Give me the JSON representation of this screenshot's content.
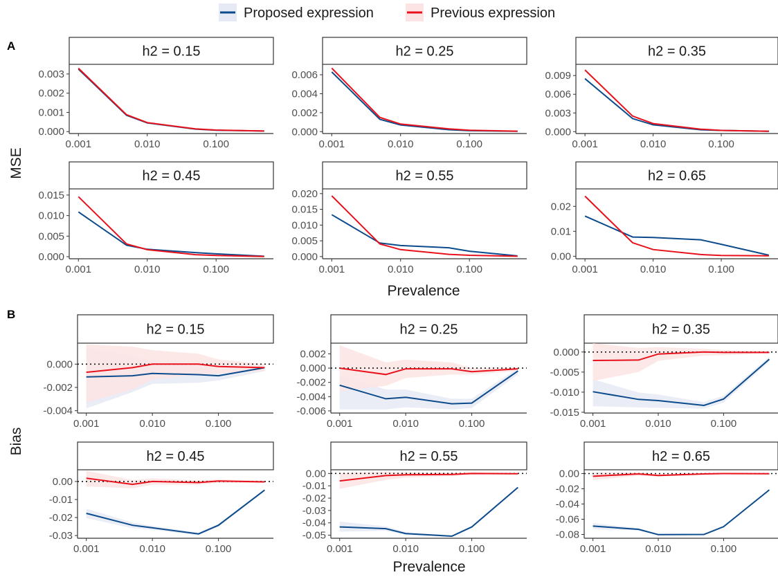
{
  "legend": {
    "items": [
      {
        "label": "Proposed expression",
        "color": "#0b4a8b",
        "fill": "#e6eaf4"
      },
      {
        "label": "Previous expression",
        "color": "#e8111b",
        "fill": "#fde4e4"
      }
    ]
  },
  "sections": [
    {
      "label": "A",
      "ylabel": "MSE",
      "xlabel": "Prevalence"
    },
    {
      "label": "B",
      "ylabel": "Bias",
      "xlabel": "Prevalence"
    }
  ],
  "chart_data": [
    {
      "type": "line",
      "section": "A",
      "title": "h2 = 0.15",
      "xscale": "log",
      "x": [
        0.001,
        0.005,
        0.01,
        0.05,
        0.1,
        0.5
      ],
      "xticks": [
        0.001,
        0.01,
        0.1
      ],
      "xtick_labels": [
        "0.001",
        "0.010",
        "0.100"
      ],
      "ylim": [
        -0.0001,
        0.0035
      ],
      "yticks": [
        0,
        0.001,
        0.002,
        0.003
      ],
      "ytick_labels": [
        "0.000",
        "0.001",
        "0.002",
        "0.003"
      ],
      "series": [
        {
          "name": "Proposed expression",
          "values": [
            0.00325,
            0.00085,
            0.00045,
            0.00013,
            7e-05,
            3e-05
          ]
        },
        {
          "name": "Previous expression",
          "values": [
            0.0033,
            0.00088,
            0.00047,
            0.00014,
            8e-05,
            3e-05
          ]
        }
      ]
    },
    {
      "type": "line",
      "section": "A",
      "title": "h2 = 0.25",
      "xscale": "log",
      "x": [
        0.001,
        0.005,
        0.01,
        0.05,
        0.1,
        0.5
      ],
      "xticks": [
        0.001,
        0.01,
        0.1
      ],
      "xtick_labels": [
        "0.001",
        "0.010",
        "0.100"
      ],
      "ylim": [
        -0.0002,
        0.0071
      ],
      "yticks": [
        0,
        0.002,
        0.004,
        0.006
      ],
      "ytick_labels": [
        "0.000",
        "0.002",
        "0.004",
        "0.006"
      ],
      "series": [
        {
          "name": "Proposed expression",
          "values": [
            0.0063,
            0.0013,
            0.0007,
            0.0002,
            0.0001,
            3e-05
          ]
        },
        {
          "name": "Previous expression",
          "values": [
            0.0067,
            0.0015,
            0.0008,
            0.0003,
            0.00015,
            5e-05
          ]
        }
      ]
    },
    {
      "type": "line",
      "section": "A",
      "title": "h2 = 0.35",
      "xscale": "log",
      "x": [
        0.001,
        0.005,
        0.01,
        0.05,
        0.1,
        0.5
      ],
      "xticks": [
        0.001,
        0.01,
        0.1
      ],
      "xtick_labels": [
        "0.001",
        "0.010",
        "0.100"
      ],
      "ylim": [
        -0.0003,
        0.0108
      ],
      "yticks": [
        0,
        0.003,
        0.006,
        0.009
      ],
      "ytick_labels": [
        "0.000",
        "0.003",
        "0.006",
        "0.009"
      ],
      "series": [
        {
          "name": "Proposed expression",
          "values": [
            0.0085,
            0.0021,
            0.0011,
            0.0003,
            0.0002,
            5e-05
          ]
        },
        {
          "name": "Previous expression",
          "values": [
            0.0099,
            0.0025,
            0.0013,
            0.0004,
            0.0002,
            5e-05
          ]
        }
      ]
    },
    {
      "type": "line",
      "section": "A",
      "title": "h2 = 0.45",
      "xscale": "log",
      "x": [
        0.001,
        0.005,
        0.01,
        0.05,
        0.1,
        0.5
      ],
      "xticks": [
        0.001,
        0.01,
        0.1
      ],
      "xtick_labels": [
        "0.001",
        "0.010",
        "0.100"
      ],
      "ylim": [
        -0.0005,
        0.0165
      ],
      "yticks": [
        0,
        0.005,
        0.01,
        0.015
      ],
      "ytick_labels": [
        "0.000",
        "0.005",
        "0.010",
        "0.015"
      ],
      "series": [
        {
          "name": "Proposed expression",
          "values": [
            0.0109,
            0.0028,
            0.0018,
            0.001,
            0.0007,
            0.0001
          ]
        },
        {
          "name": "Previous expression",
          "values": [
            0.0146,
            0.0031,
            0.0017,
            0.0005,
            0.0003,
            5e-05
          ]
        }
      ]
    },
    {
      "type": "line",
      "section": "A",
      "title": "h2 = 0.55",
      "xscale": "log",
      "x": [
        0.001,
        0.005,
        0.01,
        0.05,
        0.1,
        0.5
      ],
      "xticks": [
        0.001,
        0.01,
        0.1
      ],
      "xtick_labels": [
        "0.001",
        "0.010",
        "0.100"
      ],
      "ylim": [
        -0.0007,
        0.0215
      ],
      "yticks": [
        0,
        0.005,
        0.01,
        0.015,
        0.02
      ],
      "ytick_labels": [
        "0.000",
        "0.005",
        "0.010",
        "0.015",
        "0.020"
      ],
      "series": [
        {
          "name": "Proposed expression",
          "values": [
            0.0133,
            0.0043,
            0.0035,
            0.0028,
            0.0017,
            0.0002
          ]
        },
        {
          "name": "Previous expression",
          "values": [
            0.0193,
            0.004,
            0.0022,
            0.0007,
            0.0004,
            0.0001
          ]
        }
      ]
    },
    {
      "type": "line",
      "section": "A",
      "title": "h2 = 0.65",
      "xscale": "log",
      "x": [
        0.001,
        0.005,
        0.01,
        0.05,
        0.1,
        0.5
      ],
      "xticks": [
        0.001,
        0.01,
        0.1
      ],
      "xtick_labels": [
        "0.001",
        "0.010",
        "0.100"
      ],
      "ylim": [
        -0.001,
        0.027
      ],
      "yticks": [
        0,
        0.01,
        0.02
      ],
      "ytick_labels": [
        "0.00",
        "0.01",
        "0.02"
      ],
      "series": [
        {
          "name": "Proposed expression",
          "values": [
            0.0161,
            0.0077,
            0.0075,
            0.0066,
            0.0048,
            0.0004
          ]
        },
        {
          "name": "Previous expression",
          "values": [
            0.0241,
            0.0054,
            0.0027,
            0.0007,
            0.0003,
            0.0002
          ]
        }
      ]
    },
    {
      "type": "line",
      "section": "B",
      "title": "h2 = 0.15",
      "xscale": "log",
      "refline": 0,
      "x": [
        0.001,
        0.005,
        0.01,
        0.05,
        0.1,
        0.5
      ],
      "xticks": [
        0.001,
        0.01,
        0.1
      ],
      "xtick_labels": [
        "0.001",
        "0.010",
        "0.100"
      ],
      "ylim": [
        -0.0042,
        0.0018
      ],
      "yticks": [
        -0.004,
        -0.002,
        0
      ],
      "ytick_labels": [
        "-0.004",
        "-0.002",
        "0.000"
      ],
      "series": [
        {
          "name": "Proposed expression",
          "values": [
            -0.0011,
            -0.001,
            -0.0008,
            -0.0009,
            -0.001,
            -0.0003
          ],
          "lower": [
            -0.0038,
            -0.0024,
            -0.0017,
            -0.0016,
            -0.0014,
            -0.0006
          ],
          "upper": [
            0.0014,
            0.0007,
            0.0002,
            -0.0002,
            -0.0006,
            -0.0001
          ]
        },
        {
          "name": "Previous expression",
          "values": [
            -0.0007,
            -0.0003,
            0.0,
            0.0,
            -0.0002,
            -0.0003
          ],
          "lower": [
            -0.0033,
            -0.0022,
            -0.0013,
            -0.0009,
            -0.0008,
            -0.0006
          ],
          "upper": [
            0.0017,
            0.0015,
            0.0012,
            0.0009,
            0.0004,
            0.0
          ]
        }
      ]
    },
    {
      "type": "line",
      "section": "B",
      "title": "h2 = 0.25",
      "xscale": "log",
      "refline": 0,
      "x": [
        0.001,
        0.005,
        0.01,
        0.05,
        0.1,
        0.5
      ],
      "xticks": [
        0.001,
        0.01,
        0.1
      ],
      "xtick_labels": [
        "0.001",
        "0.010",
        "0.100"
      ],
      "ylim": [
        -0.0063,
        0.0035
      ],
      "yticks": [
        -0.006,
        -0.004,
        -0.002,
        0,
        0.002
      ],
      "ytick_labels": [
        "-0.006",
        "-0.004",
        "-0.002",
        "0.000",
        "0.002"
      ],
      "series": [
        {
          "name": "Proposed expression",
          "values": [
            -0.0024,
            -0.0043,
            -0.0041,
            -0.005,
            -0.0049,
            -0.0004
          ],
          "lower": [
            -0.0058,
            -0.0058,
            -0.0055,
            -0.0058,
            -0.0056,
            -0.0009
          ],
          "upper": [
            -0.001,
            -0.003,
            -0.003,
            -0.0043,
            -0.0043,
            0.0
          ]
        },
        {
          "name": "Previous expression",
          "values": [
            0.0,
            -0.0009,
            -0.0001,
            -0.0001,
            -0.0005,
            -0.0001
          ],
          "lower": [
            -0.0032,
            -0.0025,
            -0.0014,
            -0.0009,
            -0.0009,
            -0.0004
          ],
          "upper": [
            0.0032,
            0.0008,
            0.0012,
            0.0008,
            0.0,
            0.0001
          ]
        }
      ]
    },
    {
      "type": "line",
      "section": "B",
      "title": "h2 = 0.35",
      "xscale": "log",
      "refline": 0,
      "x": [
        0.001,
        0.005,
        0.01,
        0.05,
        0.1,
        0.5
      ],
      "xticks": [
        0.001,
        0.01,
        0.1
      ],
      "xtick_labels": [
        "0.001",
        "0.010",
        "0.100"
      ],
      "ylim": [
        -0.0152,
        0.0022
      ],
      "yticks": [
        -0.015,
        -0.01,
        -0.005,
        0
      ],
      "ytick_labels": [
        "-0.015",
        "-0.010",
        "-0.005",
        "0.000"
      ],
      "series": [
        {
          "name": "Proposed expression",
          "values": [
            -0.0099,
            -0.0118,
            -0.0121,
            -0.0133,
            -0.0117,
            -0.0018
          ],
          "lower": [
            -0.0135,
            -0.0138,
            -0.0139,
            -0.0141,
            -0.0126,
            -0.0024
          ],
          "upper": [
            -0.0068,
            -0.0101,
            -0.0106,
            -0.0125,
            -0.0109,
            -0.0012
          ]
        },
        {
          "name": "Previous expression",
          "values": [
            -0.0021,
            -0.002,
            -0.0005,
            0.0,
            -0.0001,
            -0.0001
          ],
          "lower": [
            -0.0072,
            -0.005,
            -0.0022,
            -0.0009,
            -0.0008,
            -0.0004
          ],
          "upper": [
            0.0022,
            0.001,
            0.0012,
            0.0008,
            0.0005,
            0.0001
          ]
        }
      ]
    },
    {
      "type": "line",
      "section": "B",
      "title": "h2 = 0.45",
      "xscale": "log",
      "refline": 0,
      "x": [
        0.001,
        0.005,
        0.01,
        0.05,
        0.1,
        0.5
      ],
      "xticks": [
        0.001,
        0.01,
        0.1
      ],
      "xtick_labels": [
        "0.001",
        "0.010",
        "0.100"
      ],
      "ylim": [
        -0.0315,
        0.0065
      ],
      "yticks": [
        -0.03,
        -0.02,
        -0.01,
        0
      ],
      "ytick_labels": [
        "-0.03",
        "-0.02",
        "-0.01",
        "0.00"
      ],
      "series": [
        {
          "name": "Proposed expression",
          "values": [
            -0.0177,
            -0.0243,
            -0.0257,
            -0.0291,
            -0.0243,
            -0.0048
          ],
          "lower": [
            -0.0203,
            -0.0259,
            -0.0268,
            -0.0298,
            -0.0251,
            -0.0054
          ],
          "upper": [
            -0.0151,
            -0.0228,
            -0.0246,
            -0.0284,
            -0.0235,
            -0.0042
          ]
        },
        {
          "name": "Previous expression",
          "values": [
            0.0018,
            -0.0016,
            0.0,
            -0.0006,
            0.0003,
            -0.0002
          ],
          "lower": [
            -0.0028,
            -0.0038,
            -0.0018,
            -0.0018,
            -0.0008,
            -0.0008
          ],
          "upper": [
            0.006,
            0.0008,
            0.0018,
            0.0006,
            0.0012,
            0.0004
          ]
        }
      ]
    },
    {
      "type": "line",
      "section": "B",
      "title": "h2 = 0.55",
      "xscale": "log",
      "refline": 0,
      "x": [
        0.001,
        0.005,
        0.01,
        0.05,
        0.1,
        0.5
      ],
      "xticks": [
        0.001,
        0.01,
        0.1
      ],
      "xtick_labels": [
        "0.001",
        "0.010",
        "0.100"
      ],
      "ylim": [
        -0.0525,
        0.003
      ],
      "yticks": [
        -0.05,
        -0.04,
        -0.03,
        -0.02,
        -0.01,
        0
      ],
      "ytick_labels": [
        "-0.05",
        "-0.04",
        "-0.03",
        "-0.02",
        "-0.01",
        "0.00"
      ],
      "series": [
        {
          "name": "Proposed expression",
          "values": [
            -0.0433,
            -0.0447,
            -0.0487,
            -0.0508,
            -0.0433,
            -0.0113
          ],
          "lower": [
            -0.0472,
            -0.0465,
            -0.0498,
            -0.0514,
            -0.0442,
            -0.012
          ],
          "upper": [
            -0.039,
            -0.0428,
            -0.0475,
            -0.0502,
            -0.0424,
            -0.0106
          ]
        },
        {
          "name": "Previous expression",
          "values": [
            -0.006,
            -0.0017,
            -0.0011,
            -0.0008,
            0.0,
            -0.0002
          ],
          "lower": [
            -0.0125,
            -0.0052,
            -0.0032,
            -0.0022,
            -0.001,
            -0.0007
          ],
          "upper": [
            0.0005,
            0.0015,
            0.001,
            0.0006,
            0.001,
            0.0003
          ]
        }
      ]
    },
    {
      "type": "line",
      "section": "B",
      "title": "h2 = 0.65",
      "xscale": "log",
      "refline": 0,
      "x": [
        0.001,
        0.005,
        0.01,
        0.05,
        0.1,
        0.5
      ],
      "xticks": [
        0.001,
        0.01,
        0.1
      ],
      "xtick_labels": [
        "0.001",
        "0.010",
        "0.100"
      ],
      "ylim": [
        -0.085,
        0.005
      ],
      "yticks": [
        -0.08,
        -0.06,
        -0.04,
        -0.02,
        0
      ],
      "ytick_labels": [
        "-0.08",
        "-0.06",
        "-0.04",
        "-0.02",
        "0.00"
      ],
      "series": [
        {
          "name": "Proposed expression",
          "values": [
            -0.069,
            -0.0733,
            -0.0803,
            -0.08,
            -0.0698,
            -0.0215
          ],
          "lower": [
            -0.073,
            -0.0748,
            -0.0812,
            -0.0808,
            -0.0708,
            -0.0223
          ],
          "upper": [
            -0.065,
            -0.0718,
            -0.0794,
            -0.0792,
            -0.0688,
            -0.0207
          ]
        },
        {
          "name": "Previous expression",
          "values": [
            -0.0035,
            -0.0005,
            -0.0025,
            -0.0005,
            0.0,
            -0.0002
          ],
          "lower": [
            -0.0085,
            -0.0028,
            -0.004,
            -0.0016,
            -0.0008,
            -0.0006
          ],
          "upper": [
            0.0015,
            0.0018,
            -0.001,
            0.0006,
            0.0008,
            0.0002
          ]
        }
      ]
    }
  ]
}
